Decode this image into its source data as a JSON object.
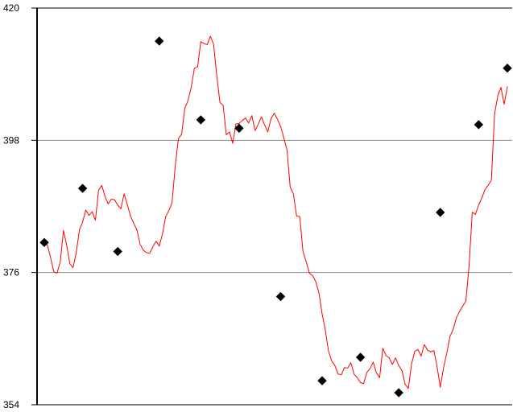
{
  "chart_data": {
    "type": "line",
    "title": "",
    "xlabel": "",
    "ylabel": "",
    "ylim": [
      354,
      420
    ],
    "y_ticks": [
      {
        "value": 420,
        "label": "420"
      },
      {
        "value": 398,
        "label": "398"
      },
      {
        "value": 376,
        "label": "376"
      },
      {
        "value": 354,
        "label": "354"
      }
    ],
    "grid": {
      "horizontal": true,
      "vertical": false
    },
    "x_range": [
      0,
      290
    ],
    "series": [
      {
        "color": "#ff0000",
        "values": [
          [
            0,
            381.0
          ],
          [
            2,
            380.5
          ],
          [
            4,
            378.4
          ],
          [
            6,
            376.1
          ],
          [
            8,
            375.9
          ],
          [
            10,
            377.8
          ],
          [
            12,
            383.0
          ],
          [
            14,
            380.6
          ],
          [
            16,
            377.5
          ],
          [
            18,
            376.8
          ],
          [
            20,
            379.3
          ],
          [
            22,
            383.1
          ],
          [
            24,
            384.4
          ],
          [
            26,
            386.4
          ],
          [
            28,
            385.5
          ],
          [
            30,
            386.1
          ],
          [
            32,
            384.7
          ],
          [
            34,
            389.7
          ],
          [
            36,
            390.5
          ],
          [
            38,
            388.7
          ],
          [
            40,
            387.4
          ],
          [
            42,
            388.2
          ],
          [
            44,
            388.1
          ],
          [
            46,
            387.2
          ],
          [
            48,
            386.6
          ],
          [
            50,
            389.1
          ],
          [
            52,
            387.3
          ],
          [
            54,
            385.4
          ],
          [
            56,
            384.2
          ],
          [
            58,
            383.1
          ],
          [
            60,
            380.7
          ],
          [
            62,
            379.7
          ],
          [
            64,
            379.3
          ],
          [
            66,
            379.2
          ],
          [
            68,
            380.3
          ],
          [
            70,
            381.2
          ],
          [
            72,
            380.4
          ],
          [
            74,
            382.4
          ],
          [
            76,
            385.3
          ],
          [
            78,
            386.3
          ],
          [
            80,
            387.6
          ],
          [
            82,
            393.7
          ],
          [
            84,
            398.3
          ],
          [
            86,
            399.0
          ],
          [
            88,
            403.3
          ],
          [
            90,
            404.6
          ],
          [
            92,
            406.8
          ],
          [
            94,
            410.0
          ],
          [
            96,
            410.2
          ],
          [
            98,
            414.4
          ],
          [
            100,
            414.1
          ],
          [
            102,
            413.9
          ],
          [
            104,
            415.3
          ],
          [
            106,
            414.0
          ],
          [
            108,
            408.8
          ],
          [
            110,
            404.3
          ],
          [
            112,
            403.8
          ],
          [
            114,
            398.9
          ],
          [
            116,
            399.4
          ],
          [
            118,
            397.5
          ],
          [
            120,
            400.7
          ],
          [
            122,
            400.8
          ],
          [
            124,
            401.3
          ],
          [
            126,
            401.7
          ],
          [
            128,
            400.9
          ],
          [
            130,
            402.1
          ],
          [
            132,
            399.6
          ],
          [
            134,
            400.7
          ],
          [
            136,
            401.9
          ],
          [
            138,
            400.5
          ],
          [
            140,
            399.4
          ],
          [
            142,
            401.6
          ],
          [
            144,
            402.5
          ],
          [
            146,
            401.5
          ],
          [
            148,
            400.3
          ],
          [
            150,
            398.4
          ],
          [
            152,
            396.4
          ],
          [
            154,
            390.2
          ],
          [
            156,
            389.1
          ],
          [
            158,
            385.4
          ],
          [
            160,
            385.3
          ],
          [
            162,
            379.5
          ],
          [
            164,
            377.8
          ],
          [
            166,
            375.9
          ],
          [
            168,
            375.5
          ],
          [
            170,
            374.5
          ],
          [
            172,
            372.6
          ],
          [
            174,
            369.1
          ],
          [
            176,
            366.4
          ],
          [
            178,
            362.9
          ],
          [
            180,
            361.3
          ],
          [
            182,
            360.5
          ],
          [
            184,
            359.1
          ],
          [
            186,
            359.0
          ],
          [
            188,
            360.2
          ],
          [
            190,
            360.1
          ],
          [
            192,
            361.0
          ],
          [
            194,
            359.1
          ],
          [
            196,
            358.5
          ],
          [
            198,
            357.7
          ],
          [
            200,
            357.5
          ],
          [
            202,
            359.4
          ],
          [
            204,
            360.0
          ],
          [
            206,
            361.1
          ],
          [
            208,
            359.3
          ],
          [
            210,
            358.5
          ],
          [
            212,
            363.4
          ],
          [
            214,
            362.2
          ],
          [
            216,
            361.8
          ],
          [
            218,
            360.7
          ],
          [
            220,
            361.8
          ],
          [
            222,
            360.5
          ],
          [
            224,
            359.7
          ],
          [
            226,
            357.4
          ],
          [
            228,
            356.7
          ],
          [
            230,
            360.8
          ],
          [
            232,
            362.9
          ],
          [
            234,
            363.2
          ],
          [
            236,
            362.1
          ],
          [
            238,
            364.0
          ],
          [
            240,
            363.1
          ],
          [
            242,
            362.8
          ],
          [
            244,
            363.0
          ],
          [
            246,
            360.3
          ],
          [
            248,
            356.9
          ],
          [
            250,
            360.1
          ],
          [
            252,
            362.5
          ],
          [
            254,
            365.3
          ],
          [
            256,
            366.5
          ],
          [
            258,
            368.4
          ],
          [
            260,
            369.5
          ],
          [
            262,
            370.4
          ],
          [
            264,
            371.2
          ],
          [
            266,
            377.0
          ],
          [
            268,
            386.0
          ],
          [
            270,
            385.7
          ],
          [
            272,
            387.2
          ],
          [
            274,
            388.4
          ],
          [
            276,
            389.8
          ],
          [
            278,
            390.5
          ],
          [
            280,
            391.4
          ],
          [
            282,
            402.4
          ],
          [
            284,
            405.4
          ],
          [
            286,
            406.8
          ],
          [
            288,
            404.0
          ],
          [
            290,
            406.9
          ]
        ]
      }
    ],
    "markers": [
      {
        "x": 0,
        "y": 381.0
      },
      {
        "x": 24,
        "y": 390.0
      },
      {
        "x": 46,
        "y": 379.5
      },
      {
        "x": 72,
        "y": 414.5
      },
      {
        "x": 98,
        "y": 401.4
      },
      {
        "x": 122,
        "y": 400.0
      },
      {
        "x": 148,
        "y": 372.0
      },
      {
        "x": 174,
        "y": 358.0
      },
      {
        "x": 198,
        "y": 361.9
      },
      {
        "x": 222,
        "y": 356.0
      },
      {
        "x": 248,
        "y": 386.0
      },
      {
        "x": 272,
        "y": 400.6
      },
      {
        "x": 290,
        "y": 410.0
      }
    ]
  }
}
